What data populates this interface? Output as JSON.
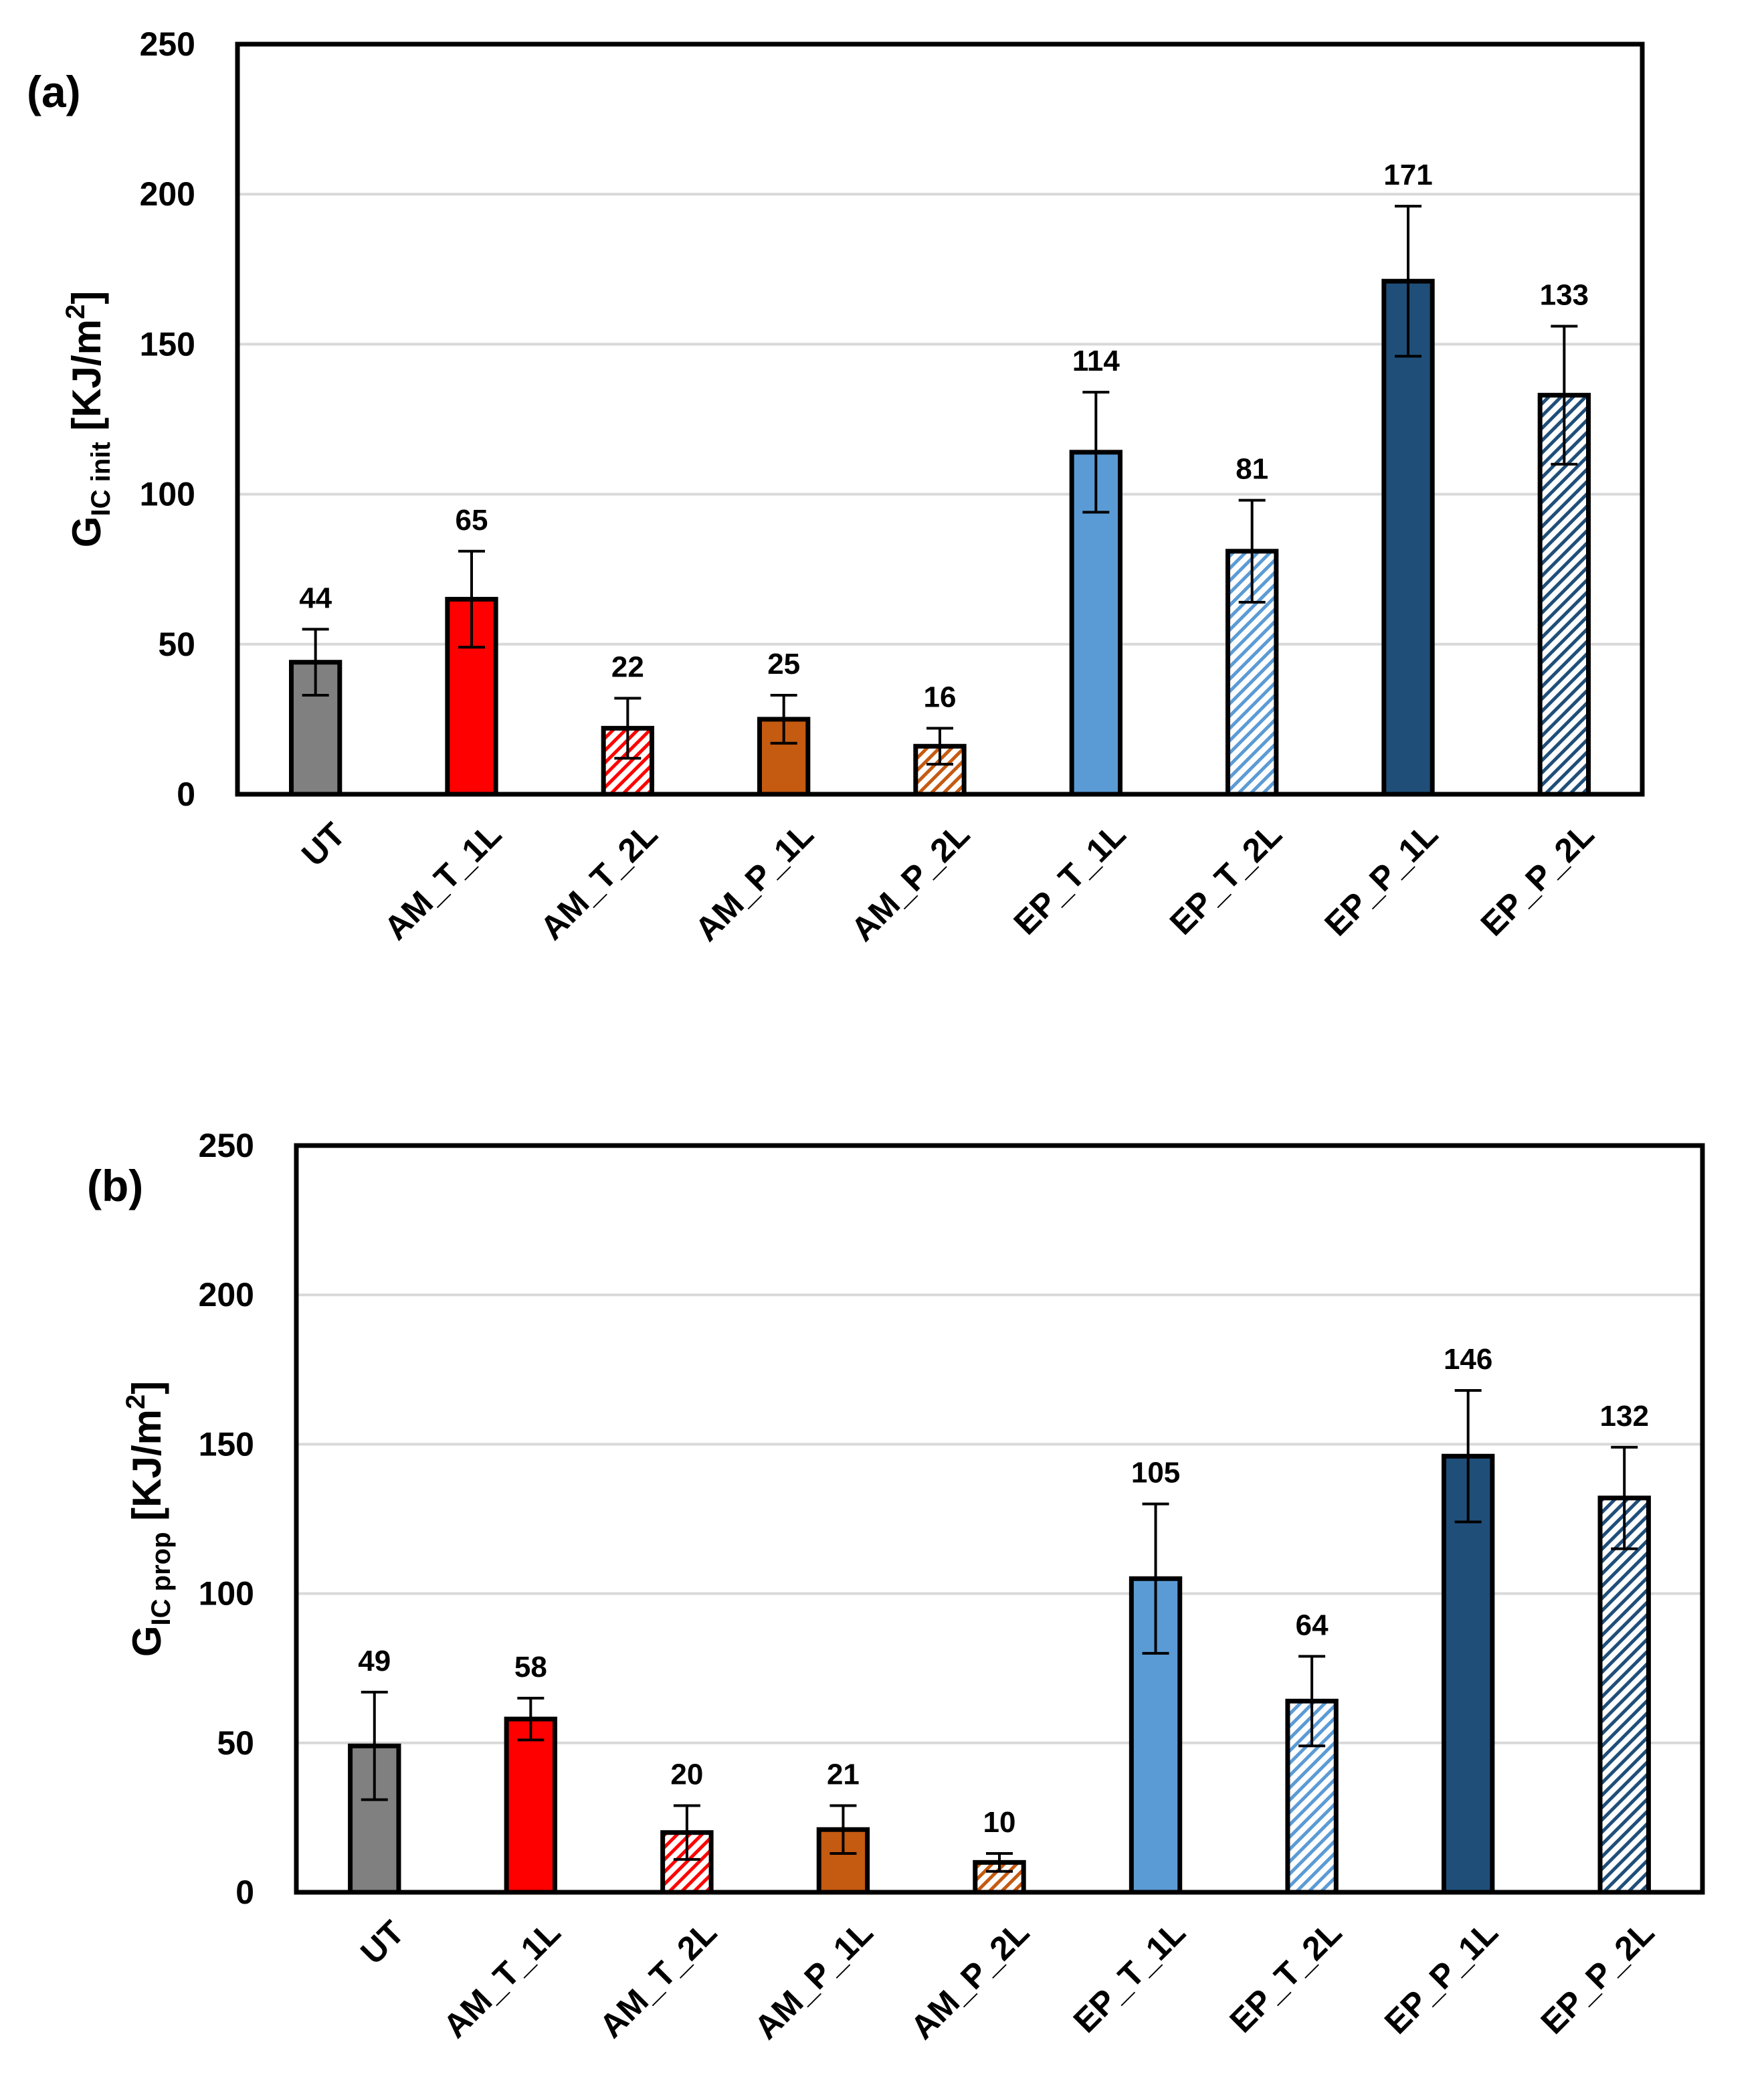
{
  "colors": {
    "UT": "#808080",
    "AM_T": "#ff0000",
    "AM_P": "#c55a11",
    "EP_T": "#5b9bd5",
    "EP_P": "#1f4e79",
    "grid": "#d9d9d9",
    "axis": "#000000"
  },
  "chart_data": [
    {
      "type": "bar",
      "panel_label": "(a)",
      "ylabel": {
        "main": "G",
        "sub": "IC init",
        "unit": " [KJ/m",
        "sup": "2",
        "close": "]"
      },
      "ylim": [
        0,
        250
      ],
      "yticks": [
        0,
        50,
        100,
        150,
        200,
        250
      ],
      "grid": true,
      "categories": [
        "UT",
        "AM_T_1L",
        "AM_T_2L",
        "AM_P_1L",
        "AM_P_2L",
        "EP_T_1L",
        "EP_T_2L",
        "EP_P_1L",
        "EP_P_2L"
      ],
      "values": [
        44,
        65,
        22,
        25,
        16,
        114,
        81,
        171,
        133
      ],
      "errors": [
        11,
        16,
        10,
        8,
        6,
        20,
        17,
        25,
        23
      ],
      "data_labels": [
        "44",
        "65",
        "22",
        "25",
        "16",
        "114",
        "81",
        "171",
        "133"
      ],
      "fill": [
        "UT",
        "AM_T",
        "AM_T",
        "AM_P",
        "AM_P",
        "EP_T",
        "EP_T",
        "EP_P",
        "EP_P"
      ],
      "hatched": [
        false,
        false,
        true,
        false,
        true,
        false,
        true,
        false,
        true
      ]
    },
    {
      "type": "bar",
      "panel_label": "(b)",
      "ylabel": {
        "main": "G",
        "sub": "IC prop",
        "unit": " [KJ/m",
        "sup": "2",
        "close": "]"
      },
      "ylim": [
        0,
        250
      ],
      "yticks": [
        0,
        50,
        100,
        150,
        200,
        250
      ],
      "grid": true,
      "categories": [
        "UT",
        "AM_T_1L",
        "AM_T_2L",
        "AM_P_1L",
        "AM_P_2L",
        "EP_T_1L",
        "EP_T_2L",
        "EP_P_1L",
        "EP_P_2L"
      ],
      "values": [
        49,
        58,
        20,
        21,
        10,
        105,
        64,
        146,
        132
      ],
      "errors": [
        18,
        7,
        9,
        8,
        3,
        25,
        15,
        22,
        17
      ],
      "data_labels": [
        "49",
        "58",
        "20",
        "21",
        "10",
        "105",
        "64",
        "146",
        "132"
      ],
      "fill": [
        "UT",
        "AM_T",
        "AM_T",
        "AM_P",
        "AM_P",
        "EP_T",
        "EP_T",
        "EP_P",
        "EP_P"
      ],
      "hatched": [
        false,
        false,
        true,
        false,
        true,
        false,
        true,
        false,
        true
      ]
    }
  ]
}
